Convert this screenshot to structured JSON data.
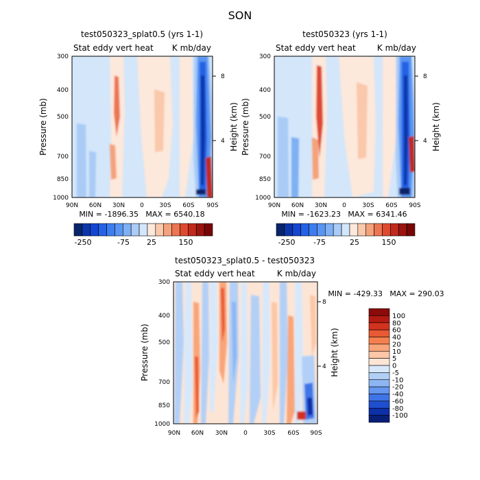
{
  "page": {
    "title": "SON"
  },
  "chart_data": [
    {
      "type": "heatmap",
      "title": "test050323_splat0.5 (yrs 1-1)",
      "subtitle_left": "Stat eddy vert heat",
      "subtitle_right": "K mb/day",
      "ylabel": "Pressure (mb)",
      "y2label": "Height (km)",
      "xticks": [
        "90N",
        "60N",
        "30N",
        "0",
        "30S",
        "60S",
        "90S"
      ],
      "yticks": [
        "300",
        "400",
        "500",
        "700",
        "850",
        "1000"
      ],
      "y2ticks": [
        "8",
        "4"
      ],
      "stats": "MIN = -1896.35   MAX = 6540.18",
      "colorbar": {
        "orientation": "horizontal",
        "labels": [
          "-250",
          "-75",
          "25",
          "150"
        ],
        "colors": [
          "#08246b",
          "#0c35a8",
          "#1546d0",
          "#2462e6",
          "#3c7df0",
          "#5a95f2",
          "#7fb0f4",
          "#a9cbf6",
          "#d3e6fa",
          "#fde8dc",
          "#fac8aa",
          "#f4a27c",
          "#ec7552",
          "#dd4a30",
          "#c02a1c",
          "#9a1410",
          "#780606"
        ]
      }
    },
    {
      "type": "heatmap",
      "title": "test050323 (yrs 1-1)",
      "subtitle_left": "Stat eddy vert heat",
      "subtitle_right": "K mb/day",
      "ylabel": "Pressure (mb)",
      "y2label": "Height (km)",
      "xticks": [
        "90N",
        "60N",
        "30N",
        "0",
        "30S",
        "60S",
        "90S"
      ],
      "yticks": [
        "300",
        "400",
        "500",
        "700",
        "850",
        "1000"
      ],
      "y2ticks": [
        "8",
        "4"
      ],
      "stats": "MIN = -1623.23   MAX = 6341.46",
      "colorbar": {
        "orientation": "horizontal",
        "labels": [
          "-250",
          "-75",
          "25",
          "150"
        ],
        "colors": [
          "#08246b",
          "#0c35a8",
          "#1546d0",
          "#2462e6",
          "#3c7df0",
          "#5a95f2",
          "#7fb0f4",
          "#a9cbf6",
          "#d3e6fa",
          "#fde8dc",
          "#fac8aa",
          "#f4a27c",
          "#ec7552",
          "#dd4a30",
          "#c02a1c",
          "#9a1410",
          "#780606"
        ]
      }
    },
    {
      "type": "heatmap",
      "title": "test050323_splat0.5 - test050323",
      "subtitle_left": "Stat eddy vert heat",
      "subtitle_right": "K mb/day",
      "ylabel": "Pressure (mb)",
      "y2label": "Height (km)",
      "xticks": [
        "90N",
        "60N",
        "30N",
        "0",
        "30S",
        "60S",
        "90S"
      ],
      "yticks": [
        "300",
        "400",
        "500",
        "700",
        "850",
        "1000"
      ],
      "y2ticks": [
        "8",
        "4"
      ],
      "stats": "MIN = -429.33   MAX = 290.03",
      "colorbar": {
        "orientation": "vertical",
        "labels": [
          "100",
          "80",
          "60",
          "40",
          "20",
          "10",
          "5",
          "0",
          "-5",
          "-10",
          "-20",
          "-40",
          "-60",
          "-80",
          "-100"
        ],
        "colors": [
          "#8b0a0a",
          "#b31a12",
          "#d2331e",
          "#e85a33",
          "#f4804f",
          "#f9a57a",
          "#fcc7a6",
          "#fde5d6",
          "#d8e8fb",
          "#b2d0f7",
          "#8cb6f3",
          "#6597ef",
          "#3f74e6",
          "#1f4fd0",
          "#0d2fa8",
          "#081f78"
        ]
      }
    }
  ]
}
